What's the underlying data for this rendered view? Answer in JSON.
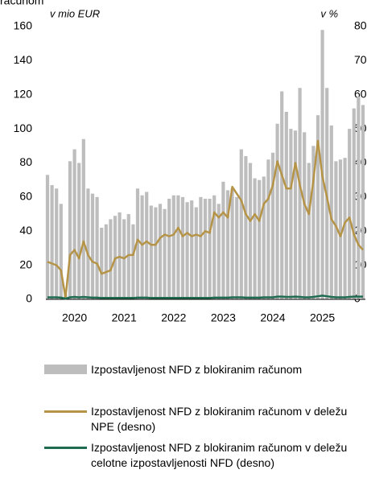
{
  "chart_data": {
    "type": "bar_line",
    "title": "računom",
    "y_label": "v mio EUR",
    "y2_label": "v %",
    "categories": [
      null,
      null,
      null,
      null,
      null,
      null,
      "2020",
      null,
      null,
      null,
      null,
      null,
      null,
      null,
      null,
      null,
      null,
      "2021",
      null,
      null,
      null,
      null,
      null,
      null,
      null,
      null,
      null,
      null,
      "2022",
      null,
      null,
      null,
      null,
      null,
      null,
      null,
      null,
      null,
      null,
      "2023",
      null,
      null,
      null,
      null,
      null,
      null,
      null,
      null,
      null,
      null,
      "2024",
      null,
      null,
      null,
      null,
      null,
      null,
      null,
      null,
      null,
      null,
      "2025",
      null,
      null,
      null,
      null,
      null,
      null,
      null,
      null,
      null
    ],
    "series": [
      {
        "name": "Izpostavljenost NFD z blokiranim računom",
        "kind": "bar",
        "color": "#bdbdbd",
        "values": [
          73,
          67,
          65,
          56,
          3,
          81,
          88,
          80,
          94,
          65,
          62,
          60,
          42,
          44,
          47,
          49,
          51,
          47,
          50,
          44,
          65,
          61,
          63,
          55,
          54,
          56,
          53,
          59,
          61,
          61,
          60,
          57,
          58,
          54,
          60,
          59,
          59,
          61,
          56,
          69,
          64,
          65,
          60,
          88,
          84,
          80,
          71,
          70,
          72,
          82,
          86,
          103,
          122,
          110,
          100,
          99,
          124,
          98,
          80,
          90,
          108,
          158,
          124,
          102,
          81,
          82,
          83,
          100,
          112,
          119,
          114
        ]
      },
      {
        "name": "Izpostavljenost NFD z blokiranim računom v deležu NPE (desno)",
        "kind": "line",
        "axis": "y2",
        "color": "#b59448",
        "values": [
          11,
          10.5,
          10,
          8.5,
          0.5,
          13,
          14.5,
          12,
          17,
          13,
          11,
          10.5,
          7.5,
          8,
          8.5,
          12,
          12.5,
          12,
          13,
          13,
          17.5,
          16,
          17,
          16,
          16,
          18,
          19,
          18.5,
          19,
          21,
          18.5,
          19.5,
          18.5,
          19,
          18.5,
          20,
          19.5,
          25.5,
          24,
          25.5,
          24,
          33,
          31,
          29,
          25,
          23,
          25,
          23,
          28,
          29.5,
          33.5,
          40.5,
          36.5,
          32.5,
          32.5,
          40,
          33.5,
          28,
          25,
          35,
          46.5,
          36,
          30,
          23.5,
          21.5,
          18.5,
          22.5,
          24,
          19,
          16,
          14.5
        ]
      },
      {
        "name": "Izpostavljenost NFD z blokiranim računom v deležu celotne izpostavljenosti NFD (desno)",
        "kind": "line",
        "axis": "y2",
        "color": "#1f6b50",
        "values": [
          0.6,
          0.6,
          0.6,
          0.5,
          0.2,
          0.6,
          0.7,
          0.6,
          0.7,
          0.6,
          0.5,
          0.5,
          0.4,
          0.4,
          0.4,
          0.4,
          0.4,
          0.4,
          0.4,
          0.4,
          0.5,
          0.5,
          0.5,
          0.4,
          0.4,
          0.4,
          0.4,
          0.4,
          0.4,
          0.4,
          0.4,
          0.4,
          0.4,
          0.4,
          0.4,
          0.4,
          0.4,
          0.5,
          0.5,
          0.5,
          0.5,
          0.6,
          0.6,
          0.6,
          0.5,
          0.5,
          0.5,
          0.5,
          0.6,
          0.6,
          0.6,
          0.8,
          0.8,
          0.7,
          0.7,
          0.8,
          0.7,
          0.6,
          0.6,
          0.7,
          0.9,
          1.1,
          0.9,
          0.7,
          0.6,
          0.6,
          0.6,
          0.7,
          0.8,
          0.8,
          0.8
        ]
      }
    ],
    "ylim": [
      0,
      160
    ],
    "yticks": [
      0,
      20,
      40,
      60,
      80,
      100,
      120,
      140,
      160
    ],
    "y2lim": [
      0,
      80
    ],
    "y2ticks": [
      0,
      10,
      20,
      30,
      40,
      50,
      60,
      70,
      80
    ],
    "legend": "bottom"
  }
}
